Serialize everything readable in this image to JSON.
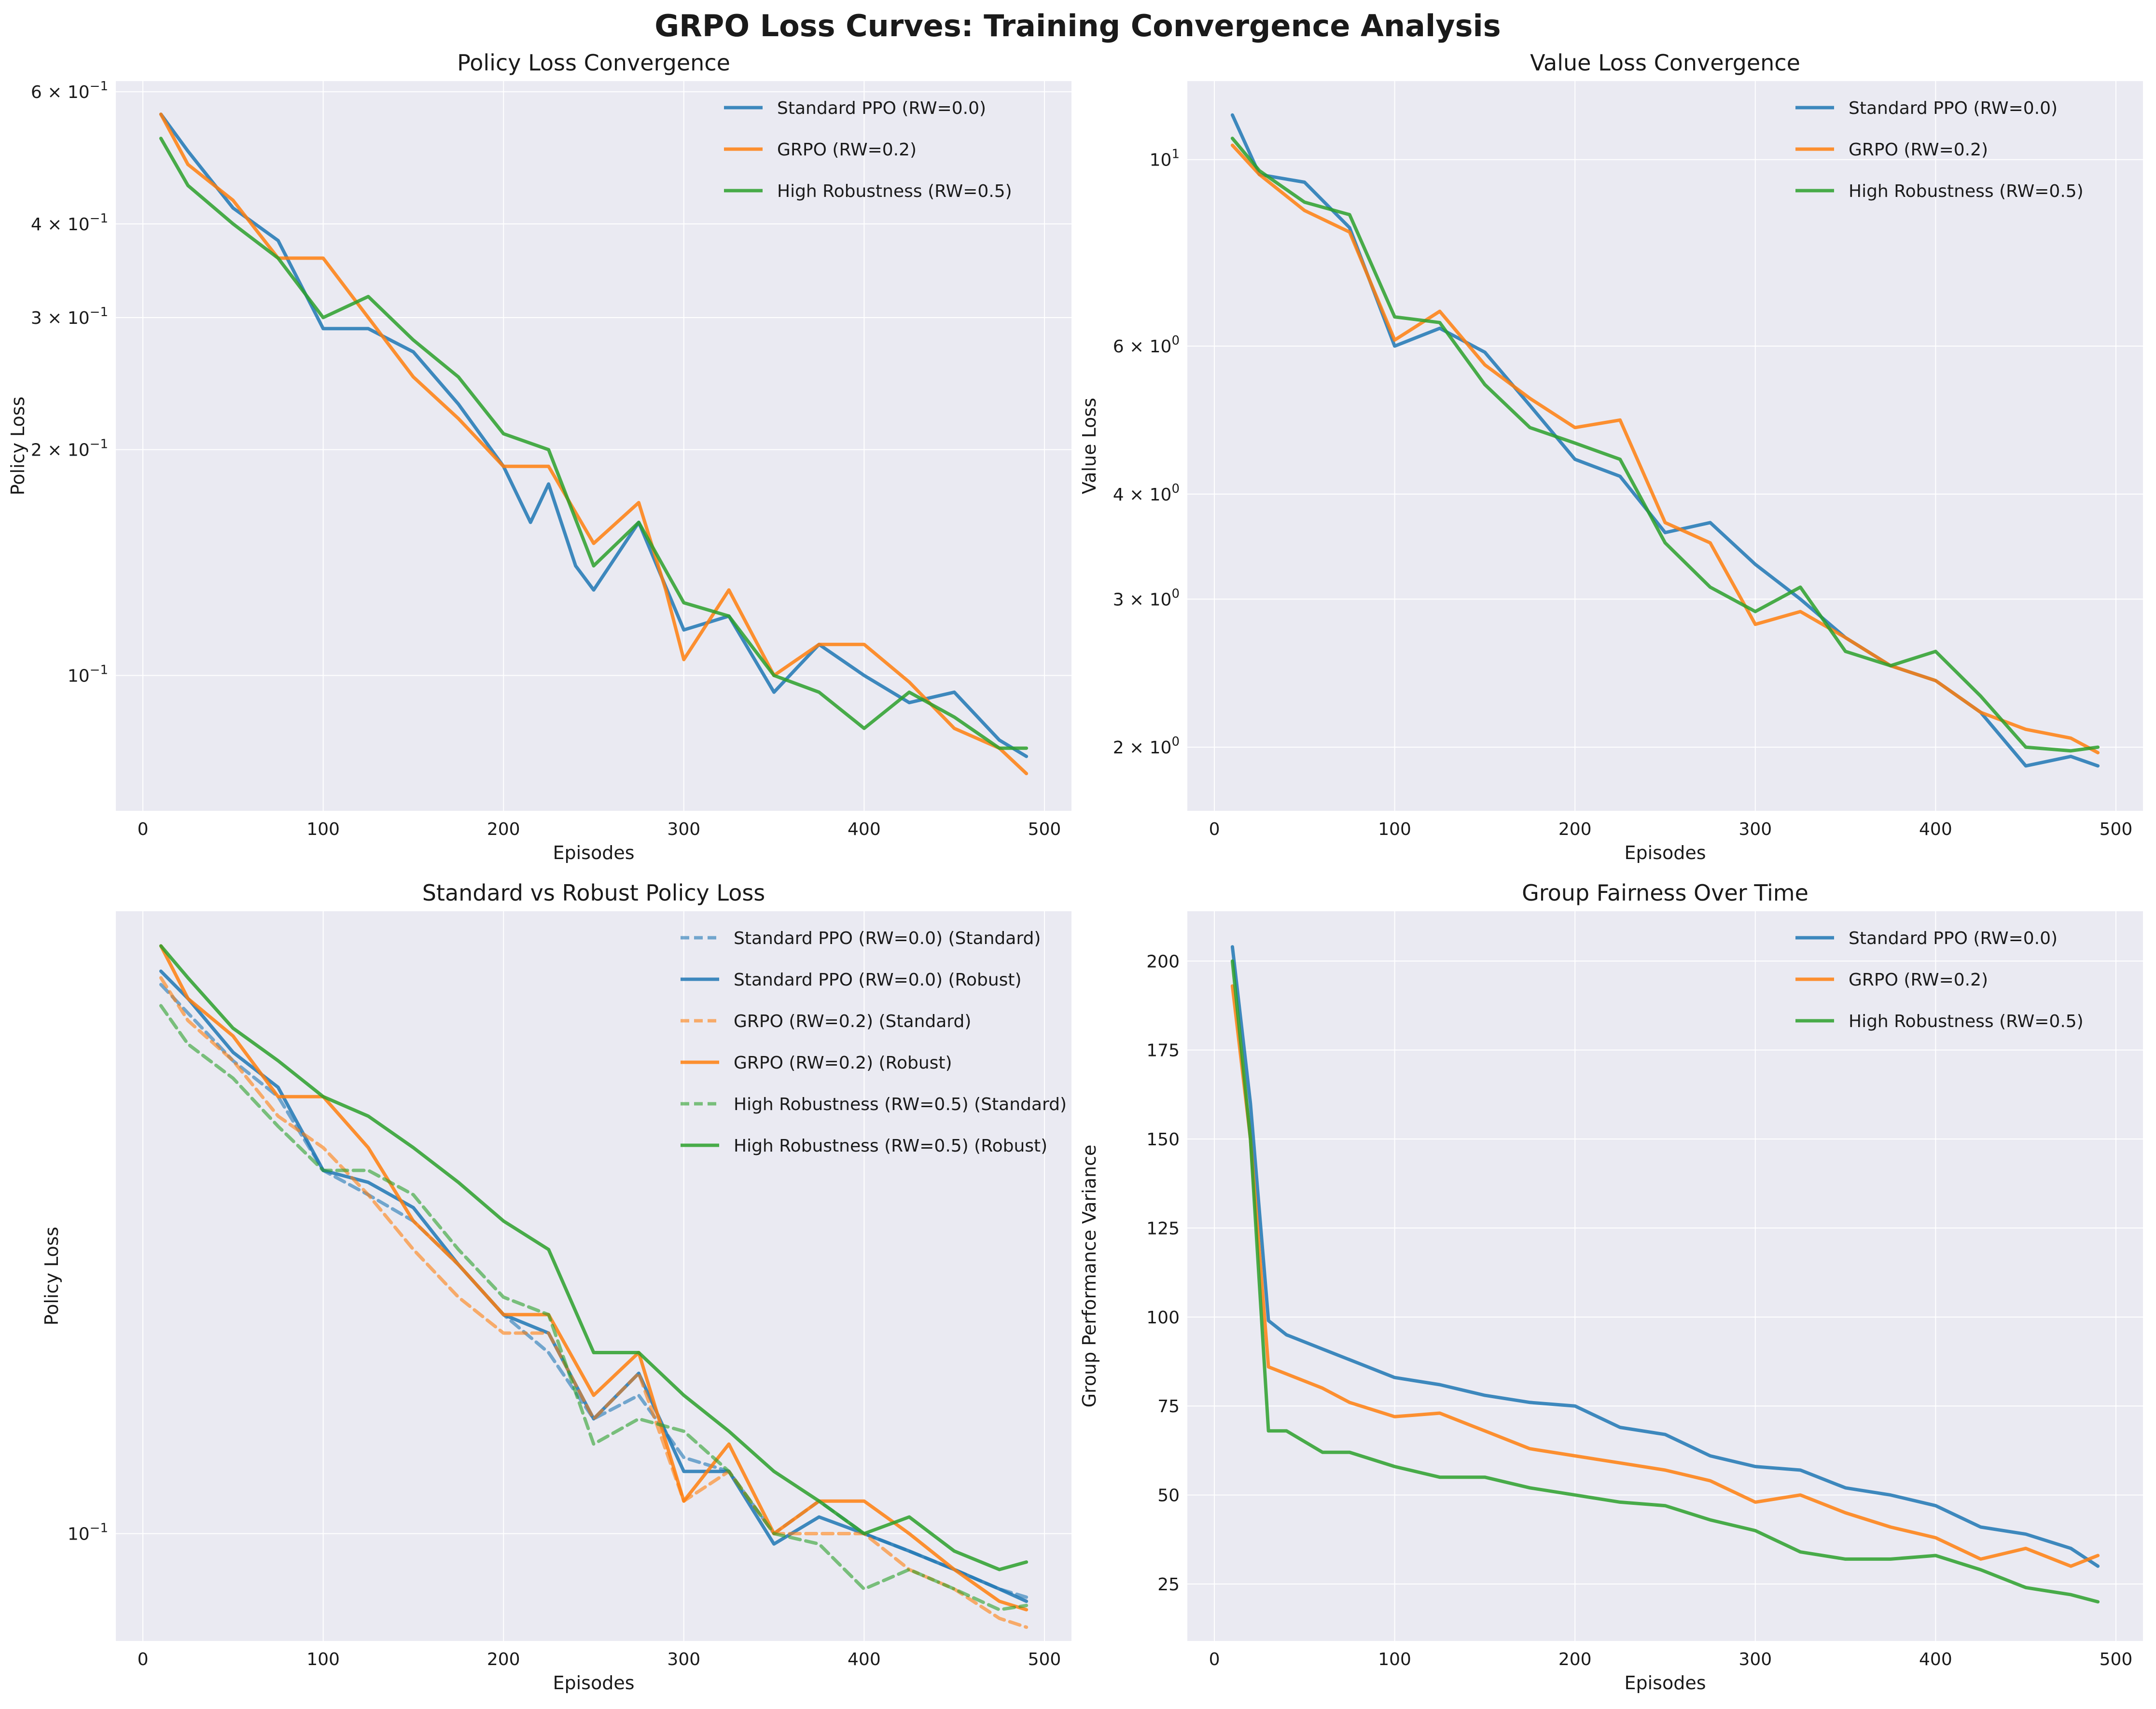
{
  "figure": {
    "title": "GRPO Loss Curves: Training Convergence Analysis"
  },
  "colors": {
    "standard_ppo": "#1f77b4",
    "grpo": "#ff7f0e",
    "high_robustness": "#2ca02c",
    "panel_bg": "#eaeaf2",
    "grid": "#ffffff"
  },
  "chart_data": [
    {
      "id": "policy",
      "type": "line",
      "title": "Policy Loss Convergence",
      "xlabel": "Episodes",
      "ylabel": "Policy Loss",
      "xlim": [
        -15,
        515
      ],
      "ylim": [
        0.066,
        0.62
      ],
      "yscale": "log",
      "grid": true,
      "legend": "top-right",
      "xticks": [
        0,
        100,
        200,
        300,
        400,
        500
      ],
      "xtick_labels": [
        "0",
        "100",
        "200",
        "300",
        "400",
        "500"
      ],
      "yticks": [
        0.1,
        0.2,
        0.3,
        0.4,
        0.6
      ],
      "ytick_labels": [
        {
          "base": "10",
          "exp": "−1"
        },
        {
          "base": "2 × 10",
          "exp": "−1"
        },
        {
          "base": "3 × 10",
          "exp": "−1"
        },
        {
          "base": "4 × 10",
          "exp": "−1"
        },
        {
          "base": "6 × 10",
          "exp": "−1"
        }
      ],
      "series": [
        {
          "name": "Standard PPO (RW=0.0)",
          "color": "#1f77b4",
          "dash": "solid",
          "x": [
            10,
            25,
            50,
            75,
            100,
            125,
            150,
            175,
            200,
            215,
            225,
            240,
            250,
            275,
            300,
            325,
            350,
            375,
            400,
            425,
            450,
            475,
            490
          ],
          "y": [
            0.56,
            0.5,
            0.42,
            0.38,
            0.29,
            0.29,
            0.27,
            0.23,
            0.19,
            0.16,
            0.18,
            0.14,
            0.13,
            0.16,
            0.115,
            0.12,
            0.095,
            0.11,
            0.1,
            0.092,
            0.095,
            0.082,
            0.078
          ]
        },
        {
          "name": "GRPO (RW=0.2)",
          "color": "#ff7f0e",
          "dash": "solid",
          "x": [
            10,
            25,
            50,
            75,
            100,
            125,
            150,
            175,
            200,
            225,
            250,
            275,
            290,
            300,
            325,
            350,
            375,
            400,
            425,
            450,
            475,
            490
          ],
          "y": [
            0.56,
            0.48,
            0.43,
            0.36,
            0.36,
            0.3,
            0.25,
            0.22,
            0.19,
            0.19,
            0.15,
            0.17,
            0.13,
            0.105,
            0.13,
            0.1,
            0.11,
            0.11,
            0.098,
            0.085,
            0.08,
            0.074
          ]
        },
        {
          "name": "High Robustness (RW=0.5)",
          "color": "#2ca02c",
          "dash": "solid",
          "x": [
            10,
            25,
            50,
            75,
            100,
            125,
            150,
            175,
            200,
            225,
            250,
            275,
            300,
            325,
            350,
            375,
            400,
            425,
            450,
            475,
            490
          ],
          "y": [
            0.52,
            0.45,
            0.4,
            0.36,
            0.3,
            0.32,
            0.28,
            0.25,
            0.21,
            0.2,
            0.14,
            0.16,
            0.125,
            0.12,
            0.1,
            0.095,
            0.085,
            0.095,
            0.088,
            0.08,
            0.08
          ]
        }
      ]
    },
    {
      "id": "value",
      "type": "line",
      "title": "Value Loss Convergence",
      "xlabel": "Episodes",
      "ylabel": "Value Loss",
      "xlim": [
        -15,
        515
      ],
      "ylim": [
        1.68,
        12.4
      ],
      "yscale": "log",
      "grid": true,
      "legend": "top-right",
      "xticks": [
        0,
        100,
        200,
        300,
        400,
        500
      ],
      "xtick_labels": [
        "0",
        "100",
        "200",
        "300",
        "400",
        "500"
      ],
      "yticks": [
        2,
        3,
        4,
        6,
        10
      ],
      "ytick_labels": [
        {
          "base": "2 × 10",
          "exp": "0"
        },
        {
          "base": "3 × 10",
          "exp": "0"
        },
        {
          "base": "4 × 10",
          "exp": "0"
        },
        {
          "base": "6 × 10",
          "exp": "0"
        },
        {
          "base": "10",
          "exp": "1"
        }
      ],
      "series": [
        {
          "name": "Standard PPO (RW=0.0)",
          "color": "#1f77b4",
          "dash": "solid",
          "x": [
            10,
            25,
            50,
            75,
            100,
            125,
            150,
            175,
            200,
            225,
            250,
            275,
            300,
            325,
            350,
            375,
            400,
            425,
            450,
            475,
            490
          ],
          "y": [
            11.3,
            9.6,
            9.4,
            8.3,
            6.0,
            6.3,
            5.9,
            5.1,
            4.4,
            4.2,
            3.6,
            3.7,
            3.3,
            3.0,
            2.7,
            2.5,
            2.4,
            2.2,
            1.9,
            1.95,
            1.9
          ]
        },
        {
          "name": "GRPO (RW=0.2)",
          "color": "#ff7f0e",
          "dash": "solid",
          "x": [
            10,
            25,
            50,
            75,
            100,
            125,
            150,
            175,
            200,
            225,
            250,
            275,
            300,
            325,
            350,
            375,
            400,
            425,
            450,
            475,
            490
          ],
          "y": [
            10.4,
            9.6,
            8.7,
            8.2,
            6.1,
            6.6,
            5.7,
            5.2,
            4.8,
            4.9,
            3.7,
            3.5,
            2.8,
            2.9,
            2.7,
            2.5,
            2.4,
            2.2,
            2.1,
            2.05,
            1.97
          ]
        },
        {
          "name": "High Robustness (RW=0.5)",
          "color": "#2ca02c",
          "dash": "solid",
          "x": [
            10,
            25,
            50,
            75,
            100,
            125,
            150,
            175,
            200,
            225,
            250,
            275,
            300,
            325,
            350,
            375,
            400,
            425,
            450,
            475,
            490
          ],
          "y": [
            10.6,
            9.7,
            8.9,
            8.6,
            6.5,
            6.4,
            5.4,
            4.8,
            4.6,
            4.4,
            3.5,
            3.1,
            2.9,
            3.1,
            2.6,
            2.5,
            2.6,
            2.3,
            2.0,
            1.98,
            2.0
          ]
        }
      ]
    },
    {
      "id": "robust",
      "type": "line",
      "title": "Standard vs Robust Policy Loss",
      "xlabel": "Episodes",
      "ylabel": "Policy Loss",
      "xlim": [
        -15,
        515
      ],
      "ylim": [
        0.073,
        0.62
      ],
      "yscale": "log",
      "grid": true,
      "legend": "top-right",
      "xticks": [
        0,
        100,
        200,
        300,
        400,
        500
      ],
      "xtick_labels": [
        "0",
        "100",
        "200",
        "300",
        "400",
        "500"
      ],
      "yticks": [
        0.1
      ],
      "ytick_labels": [
        {
          "base": "10",
          "exp": "−1"
        }
      ],
      "series": [
        {
          "name": "Standard PPO (RW=0.0) (Standard)",
          "color": "#1f77b4",
          "dash": "dashed",
          "x": [
            10,
            25,
            50,
            75,
            100,
            125,
            150,
            175,
            200,
            225,
            250,
            275,
            300,
            325,
            350,
            375,
            400,
            425,
            450,
            475,
            490
          ],
          "y": [
            0.5,
            0.46,
            0.4,
            0.36,
            0.29,
            0.27,
            0.25,
            0.22,
            0.19,
            0.17,
            0.14,
            0.15,
            0.125,
            0.12,
            0.1,
            0.11,
            0.1,
            0.095,
            0.09,
            0.085,
            0.083
          ]
        },
        {
          "name": "Standard PPO (RW=0.0) (Robust)",
          "color": "#1f77b4",
          "dash": "solid",
          "x": [
            10,
            25,
            50,
            75,
            100,
            125,
            150,
            175,
            200,
            225,
            250,
            275,
            300,
            325,
            350,
            375,
            400,
            425,
            450,
            475,
            490
          ],
          "y": [
            0.52,
            0.48,
            0.41,
            0.37,
            0.29,
            0.28,
            0.26,
            0.22,
            0.19,
            0.18,
            0.14,
            0.16,
            0.12,
            0.12,
            0.097,
            0.105,
            0.1,
            0.095,
            0.09,
            0.085,
            0.082
          ]
        },
        {
          "name": "GRPO (RW=0.2) (Standard)",
          "color": "#ff7f0e",
          "dash": "dashed",
          "x": [
            10,
            25,
            50,
            75,
            100,
            125,
            150,
            175,
            200,
            225,
            250,
            275,
            300,
            325,
            350,
            375,
            400,
            425,
            450,
            475,
            490
          ],
          "y": [
            0.51,
            0.45,
            0.4,
            0.34,
            0.31,
            0.27,
            0.23,
            0.2,
            0.18,
            0.18,
            0.14,
            0.16,
            0.11,
            0.12,
            0.1,
            0.1,
            0.1,
            0.09,
            0.085,
            0.078,
            0.076
          ]
        },
        {
          "name": "GRPO (RW=0.2) (Robust)",
          "color": "#ff7f0e",
          "dash": "solid",
          "x": [
            10,
            25,
            50,
            75,
            100,
            125,
            150,
            175,
            200,
            225,
            250,
            275,
            300,
            325,
            350,
            375,
            400,
            425,
            450,
            475,
            490
          ],
          "y": [
            0.56,
            0.48,
            0.43,
            0.36,
            0.36,
            0.31,
            0.25,
            0.22,
            0.19,
            0.19,
            0.15,
            0.17,
            0.11,
            0.13,
            0.1,
            0.11,
            0.11,
            0.1,
            0.09,
            0.082,
            0.08
          ]
        },
        {
          "name": "High Robustness (RW=0.5) (Standard)",
          "color": "#2ca02c",
          "dash": "dashed",
          "x": [
            10,
            25,
            50,
            75,
            100,
            125,
            150,
            175,
            200,
            225,
            250,
            275,
            300,
            325,
            350,
            375,
            400,
            425,
            450,
            475,
            490
          ],
          "y": [
            0.47,
            0.42,
            0.38,
            0.33,
            0.29,
            0.29,
            0.27,
            0.23,
            0.2,
            0.19,
            0.13,
            0.14,
            0.135,
            0.12,
            0.1,
            0.097,
            0.085,
            0.09,
            0.085,
            0.08,
            0.081
          ]
        },
        {
          "name": "High Robustness (RW=0.5) (Robust)",
          "color": "#2ca02c",
          "dash": "solid",
          "x": [
            10,
            25,
            50,
            75,
            100,
            125,
            150,
            175,
            200,
            225,
            250,
            275,
            300,
            325,
            350,
            375,
            400,
            425,
            450,
            475,
            490
          ],
          "y": [
            0.56,
            0.51,
            0.44,
            0.4,
            0.36,
            0.34,
            0.31,
            0.28,
            0.25,
            0.23,
            0.17,
            0.17,
            0.15,
            0.135,
            0.12,
            0.11,
            0.1,
            0.105,
            0.095,
            0.09,
            0.092
          ]
        }
      ]
    },
    {
      "id": "fairness",
      "type": "line",
      "title": "Group Fairness Over Time",
      "xlabel": "Episodes",
      "ylabel": "Group Performance Variance",
      "xlim": [
        -15,
        515
      ],
      "ylim": [
        9,
        214
      ],
      "yscale": "linear",
      "grid": true,
      "legend": "top-right",
      "xticks": [
        0,
        100,
        200,
        300,
        400,
        500
      ],
      "xtick_labels": [
        "0",
        "100",
        "200",
        "300",
        "400",
        "500"
      ],
      "yticks": [
        25,
        50,
        75,
        100,
        125,
        150,
        175,
        200
      ],
      "ytick_labels": [
        "25",
        "50",
        "75",
        "100",
        "125",
        "150",
        "175",
        "200"
      ],
      "series": [
        {
          "name": "Standard PPO (RW=0.0)",
          "color": "#1f77b4",
          "dash": "solid",
          "x": [
            10,
            20,
            30,
            40,
            60,
            75,
            100,
            125,
            150,
            175,
            200,
            225,
            250,
            275,
            300,
            325,
            350,
            375,
            400,
            425,
            450,
            475,
            490
          ],
          "y": [
            204,
            160,
            99,
            95,
            91,
            88,
            83,
            81,
            78,
            76,
            75,
            69,
            67,
            61,
            58,
            57,
            52,
            50,
            47,
            41,
            39,
            35,
            30
          ]
        },
        {
          "name": "GRPO (RW=0.2)",
          "color": "#ff7f0e",
          "dash": "solid",
          "x": [
            10,
            20,
            30,
            40,
            60,
            75,
            100,
            125,
            150,
            175,
            200,
            225,
            250,
            275,
            300,
            325,
            350,
            375,
            400,
            425,
            450,
            475,
            490
          ],
          "y": [
            193,
            150,
            86,
            84,
            80,
            76,
            72,
            73,
            68,
            63,
            61,
            59,
            57,
            54,
            48,
            50,
            45,
            41,
            38,
            32,
            35,
            30,
            33
          ]
        },
        {
          "name": "High Robustness (RW=0.5)",
          "color": "#2ca02c",
          "dash": "solid",
          "x": [
            10,
            20,
            30,
            40,
            60,
            75,
            100,
            125,
            150,
            175,
            200,
            225,
            250,
            275,
            300,
            325,
            350,
            375,
            400,
            425,
            450,
            475,
            490
          ],
          "y": [
            200,
            150,
            68,
            68,
            62,
            62,
            58,
            55,
            55,
            52,
            50,
            48,
            47,
            43,
            40,
            34,
            32,
            32,
            33,
            29,
            24,
            22,
            20
          ]
        }
      ]
    }
  ]
}
